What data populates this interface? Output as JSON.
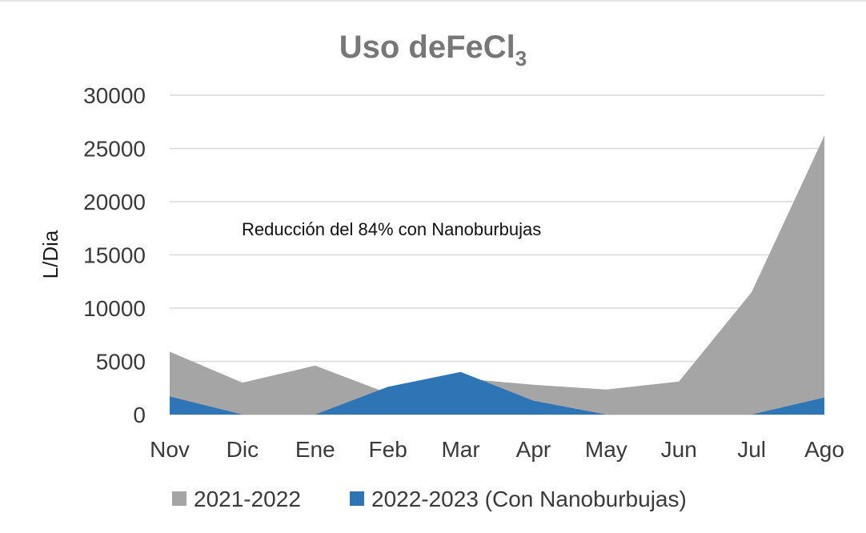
{
  "chart_data": {
    "type": "area",
    "title": "Uso deFeCl",
    "title_subscript": "3",
    "xlabel": "",
    "ylabel": "L/Dia",
    "categories": [
      "Nov",
      "Dic",
      "Ene",
      "Feb",
      "Mar",
      "Apr",
      "May",
      "Jun",
      "Jul",
      "Ago"
    ],
    "ylim": [
      0,
      30000
    ],
    "yticks": [
      0,
      5000,
      10000,
      15000,
      20000,
      25000,
      30000
    ],
    "grid": true,
    "legend_position": "bottom",
    "annotation": "Reducción del 84% con Nanoburbujas",
    "series": [
      {
        "name": "2021-2022",
        "color": "#a5a5a5",
        "values": [
          5900,
          3000,
          4600,
          2000,
          3400,
          2800,
          2350,
          3100,
          11500,
          26200
        ]
      },
      {
        "name": "2022-2023 (Con Nanoburbujas)",
        "color": "#2e75b6",
        "values": [
          1700,
          0,
          0,
          2600,
          4000,
          1300,
          0,
          0,
          0,
          1600
        ]
      }
    ]
  }
}
